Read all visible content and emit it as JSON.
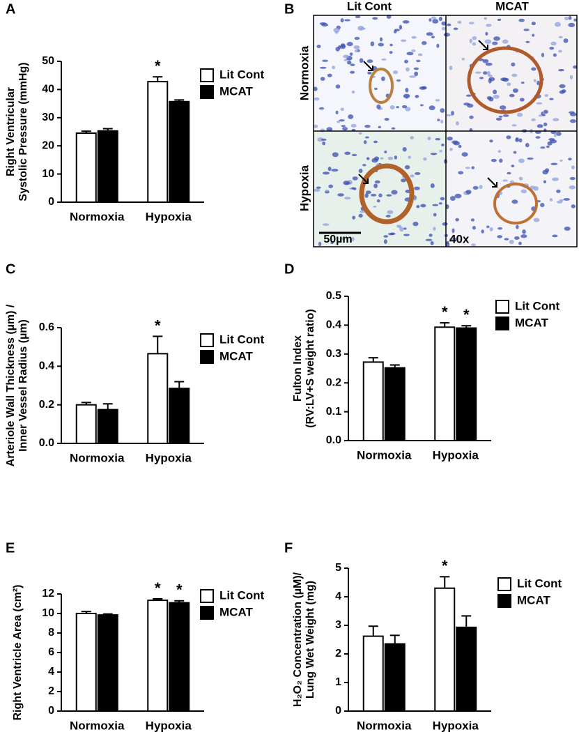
{
  "chart_data": [
    {
      "type": "bar",
      "panel_label": "A",
      "ylabel": [
        "Right Ventricular",
        "Systolic Pressure (mmHg)"
      ],
      "categories": [
        "Normoxia",
        "Hypoxia"
      ],
      "series": [
        {
          "name": "Lit Cont",
          "color": "#ffffff",
          "values": [
            24.5,
            42.8
          ],
          "errors": [
            0.7,
            1.7
          ],
          "significance": [
            null,
            "*"
          ]
        },
        {
          "name": "MCAT",
          "color": "#000000",
          "values": [
            25.3,
            35.7
          ],
          "errors": [
            0.8,
            0.6
          ],
          "significance": [
            null,
            null
          ]
        }
      ],
      "ylim": [
        0,
        50
      ],
      "yticks": [
        0,
        10,
        20,
        30,
        40,
        50
      ]
    },
    {
      "type": "bar",
      "panel_label": "C",
      "ylabel": [
        "Arteriole Wall Thickness (µm) /",
        "Inner Vessel Radius (µm)"
      ],
      "categories": [
        "Normoxia",
        "Hypoxia"
      ],
      "series": [
        {
          "name": "Lit Cont",
          "color": "#ffffff",
          "values": [
            0.2,
            0.465
          ],
          "errors": [
            0.012,
            0.09
          ],
          "significance": [
            null,
            "*"
          ]
        },
        {
          "name": "MCAT",
          "color": "#000000",
          "values": [
            0.175,
            0.285
          ],
          "errors": [
            0.03,
            0.035
          ],
          "significance": [
            null,
            null
          ]
        }
      ],
      "ylim": [
        0,
        0.6
      ],
      "yticks": [
        {
          "value": 0,
          "label": "0.0"
        },
        0.2,
        0.4,
        0.6
      ]
    },
    {
      "type": "bar",
      "panel_label": "D",
      "ylabel": [
        "Fulton Index",
        "(RV:LV+S weight ratio)"
      ],
      "categories": [
        "Normoxia",
        "Hypoxia"
      ],
      "series": [
        {
          "name": "Lit Cont",
          "color": "#ffffff",
          "values": [
            0.272,
            0.393
          ],
          "errors": [
            0.015,
            0.015
          ],
          "significance": [
            null,
            "*"
          ]
        },
        {
          "name": "MCAT",
          "color": "#000000",
          "values": [
            0.252,
            0.39
          ],
          "errors": [
            0.01,
            0.008
          ],
          "significance": [
            null,
            "*"
          ]
        }
      ],
      "ylim": [
        0,
        0.5
      ],
      "yticks": [
        {
          "value": 0,
          "label": "0.0"
        },
        0.1,
        0.2,
        0.3,
        0.4,
        0.5
      ]
    },
    {
      "type": "bar",
      "panel_label": "E",
      "ylabel": [
        "Right Ventricle Area (cm²)"
      ],
      "categories": [
        "Normoxia",
        "Hypoxia"
      ],
      "series": [
        {
          "name": "Lit Cont",
          "color": "#ffffff",
          "values": [
            10.0,
            11.35
          ],
          "errors": [
            0.2,
            0.15
          ],
          "significance": [
            null,
            "*"
          ]
        },
        {
          "name": "MCAT",
          "color": "#000000",
          "values": [
            9.85,
            11.1
          ],
          "errors": [
            0.1,
            0.2
          ],
          "significance": [
            null,
            "*"
          ]
        }
      ],
      "ylim": [
        0,
        12
      ],
      "yticks": [
        0,
        2,
        4,
        6,
        8,
        10,
        12
      ]
    },
    {
      "type": "bar",
      "panel_label": "F",
      "ylabel": [
        "H₂O₂ Concentration (µM)/",
        "Lung Wet Weight (mg)"
      ],
      "categories": [
        "Normoxia",
        "Hypoxia"
      ],
      "series": [
        {
          "name": "Lit Cont",
          "color": "#ffffff",
          "values": [
            2.62,
            4.3
          ],
          "errors": [
            0.35,
            0.4
          ],
          "significance": [
            null,
            "*"
          ]
        },
        {
          "name": "MCAT",
          "color": "#000000",
          "values": [
            2.35,
            2.93
          ],
          "errors": [
            0.3,
            0.4
          ],
          "significance": [
            null,
            null
          ]
        }
      ],
      "ylim": [
        0,
        5
      ],
      "yticks": [
        0,
        1,
        2,
        3,
        4,
        5
      ]
    }
  ],
  "image_panel": {
    "panel_label": "B",
    "columns": [
      "Lit Cont",
      "MCAT"
    ],
    "rows": [
      "Normoxia",
      "Hypoxia"
    ],
    "scale_bar": "50µm",
    "magnification": "40x"
  }
}
